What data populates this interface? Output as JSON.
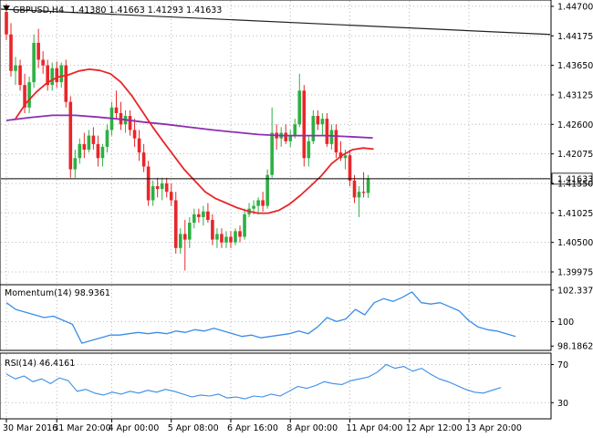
{
  "header": {
    "symbol_text": "GBPUSD,H4",
    "ohlc_text": "1.41380 1.41663 1.41293 1.41633"
  },
  "colors": {
    "bull": "#2db043",
    "bear": "#e8262a",
    "sma_fast": "#e8262a",
    "sma_slow": "#8b2fb0",
    "trendline": "#222222",
    "indicator": "#3b8de8",
    "grid_dot": "#b8b8b8",
    "frame": "#000000"
  },
  "chart_data": [
    {
      "type": "candlestick",
      "title": "GBPUSD,H4",
      "ylim": [
        1.3978,
        1.4478
      ],
      "y_ticks": [
        "1.44700",
        "1.44175",
        "1.43650",
        "1.43125",
        "1.42600",
        "1.42075",
        "1.41550",
        "1.41025",
        "1.40500",
        "1.39975"
      ],
      "y_tick_values": [
        1.447,
        1.44175,
        1.4365,
        1.43125,
        1.426,
        1.42075,
        1.4155,
        1.41025,
        1.405,
        1.39975
      ],
      "last_price_label": "1.41633",
      "last_price": 1.41633,
      "x_labels": [
        "30 Mar 2016",
        "31 Mar 20:00",
        "4 Apr 00:00",
        "5 Apr 08:00",
        "6 Apr 16:00",
        "8 Apr 00:00",
        "11 Apr 04:00",
        "12 Apr 12:00",
        "13 Apr 20:00"
      ],
      "x_label_candle_index": [
        0,
        11,
        23,
        36,
        49,
        62,
        75,
        88,
        101
      ],
      "candles": [
        [
          1.446,
          1.4475,
          1.441,
          1.442
        ],
        [
          1.442,
          1.444,
          1.4345,
          1.4355
        ],
        [
          1.4355,
          1.438,
          1.433,
          1.4365
        ],
        [
          1.4365,
          1.4375,
          1.432,
          1.433
        ],
        [
          1.433,
          1.435,
          1.428,
          1.429
        ],
        [
          1.429,
          1.4345,
          1.428,
          1.4335
        ],
        [
          1.4335,
          1.442,
          1.4325,
          1.4405
        ],
        [
          1.4405,
          1.443,
          1.436,
          1.4375
        ],
        [
          1.4375,
          1.439,
          1.435,
          1.4365
        ],
        [
          1.4365,
          1.4375,
          1.432,
          1.433
        ],
        [
          1.433,
          1.437,
          1.432,
          1.436
        ],
        [
          1.436,
          1.4372,
          1.4325,
          1.4335
        ],
        [
          1.4335,
          1.437,
          1.4325,
          1.4365
        ],
        [
          1.4365,
          1.4375,
          1.429,
          1.43
        ],
        [
          1.43,
          1.431,
          1.4165,
          1.418
        ],
        [
          1.418,
          1.4215,
          1.4165,
          1.42
        ],
        [
          1.42,
          1.4235,
          1.419,
          1.4225
        ],
        [
          1.4225,
          1.4245,
          1.42,
          1.4215
        ],
        [
          1.4215,
          1.425,
          1.421,
          1.424
        ],
        [
          1.424,
          1.4255,
          1.4215,
          1.4225
        ],
        [
          1.4225,
          1.424,
          1.4185,
          1.42
        ],
        [
          1.42,
          1.4225,
          1.4185,
          1.422
        ],
        [
          1.422,
          1.426,
          1.421,
          1.425
        ],
        [
          1.425,
          1.43,
          1.424,
          1.429
        ],
        [
          1.429,
          1.432,
          1.427,
          1.428
        ],
        [
          1.428,
          1.43,
          1.425,
          1.426
        ],
        [
          1.426,
          1.4285,
          1.4245,
          1.4275
        ],
        [
          1.4275,
          1.4285,
          1.424,
          1.425
        ],
        [
          1.425,
          1.427,
          1.422,
          1.4235
        ],
        [
          1.4235,
          1.425,
          1.4195,
          1.421
        ],
        [
          1.421,
          1.4225,
          1.4175,
          1.4185
        ],
        [
          1.4185,
          1.4195,
          1.4115,
          1.4125
        ],
        [
          1.4125,
          1.416,
          1.4115,
          1.415
        ],
        [
          1.415,
          1.4165,
          1.413,
          1.4145
        ],
        [
          1.4145,
          1.4165,
          1.4125,
          1.4155
        ],
        [
          1.4155,
          1.4165,
          1.413,
          1.414
        ],
        [
          1.414,
          1.4155,
          1.4115,
          1.4125
        ],
        [
          1.4125,
          1.414,
          1.403,
          1.404
        ],
        [
          1.404,
          1.4075,
          1.403,
          1.4065
        ],
        [
          1.4065,
          1.409,
          1.4,
          1.4055
        ],
        [
          1.4055,
          1.4095,
          1.404,
          1.4085
        ],
        [
          1.4085,
          1.411,
          1.4075,
          1.41
        ],
        [
          1.41,
          1.411,
          1.4085,
          1.4095
        ],
        [
          1.4095,
          1.4115,
          1.408,
          1.4105
        ],
        [
          1.4105,
          1.412,
          1.4085,
          1.409
        ],
        [
          1.409,
          1.41,
          1.4045,
          1.4055
        ],
        [
          1.4055,
          1.4075,
          1.404,
          1.4065
        ],
        [
          1.4065,
          1.4075,
          1.404,
          1.405
        ],
        [
          1.405,
          1.407,
          1.404,
          1.406
        ],
        [
          1.406,
          1.407,
          1.404,
          1.405
        ],
        [
          1.405,
          1.4075,
          1.4045,
          1.407
        ],
        [
          1.407,
          1.408,
          1.405,
          1.406
        ],
        [
          1.406,
          1.411,
          1.4055,
          1.41
        ],
        [
          1.41,
          1.412,
          1.4095,
          1.411
        ],
        [
          1.411,
          1.4125,
          1.41,
          1.4115
        ],
        [
          1.4115,
          1.413,
          1.41,
          1.4125
        ],
        [
          1.4125,
          1.414,
          1.4105,
          1.4115
        ],
        [
          1.4115,
          1.418,
          1.411,
          1.417
        ],
        [
          1.417,
          1.429,
          1.4165,
          1.4245
        ],
        [
          1.4245,
          1.426,
          1.4215,
          1.4235
        ],
        [
          1.4235,
          1.4255,
          1.422,
          1.4245
        ],
        [
          1.4245,
          1.426,
          1.4225,
          1.423
        ],
        [
          1.423,
          1.425,
          1.422,
          1.424
        ],
        [
          1.424,
          1.427,
          1.4235,
          1.426
        ],
        [
          1.426,
          1.435,
          1.4255,
          1.432
        ],
        [
          1.432,
          1.433,
          1.4185,
          1.42
        ],
        [
          1.42,
          1.424,
          1.4185,
          1.423
        ],
        [
          1.423,
          1.4285,
          1.4225,
          1.4275
        ],
        [
          1.4275,
          1.4285,
          1.425,
          1.426
        ],
        [
          1.426,
          1.428,
          1.424,
          1.427
        ],
        [
          1.427,
          1.428,
          1.422,
          1.4225
        ],
        [
          1.4225,
          1.426,
          1.4215,
          1.425
        ],
        [
          1.425,
          1.426,
          1.42,
          1.421
        ],
        [
          1.421,
          1.423,
          1.4195,
          1.42
        ],
        [
          1.42,
          1.4215,
          1.418,
          1.4205
        ],
        [
          1.4205,
          1.4215,
          1.415,
          1.416
        ],
        [
          1.416,
          1.417,
          1.412,
          1.413
        ],
        [
          1.413,
          1.415,
          1.4095,
          1.414
        ],
        [
          1.414,
          1.4175,
          1.413,
          1.4138
        ],
        [
          1.4138,
          1.417,
          1.4129,
          1.4163
        ]
      ],
      "sma_fast_values": [
        1.427,
        1.4298,
        1.4318,
        1.4334,
        1.4344,
        1.4348,
        1.4355,
        1.4358,
        1.4356,
        1.435,
        1.4335,
        1.4312,
        1.4284,
        1.4256,
        1.423,
        1.4205,
        1.418,
        1.416,
        1.414,
        1.4128,
        1.412,
        1.4112,
        1.4106,
        1.4102,
        1.4102,
        1.4107,
        1.4118,
        1.4133,
        1.415,
        1.4168,
        1.419,
        1.4205,
        1.4215,
        1.4218,
        1.4216
      ],
      "sma_fast_start_index": 2,
      "sma_fast_step": 2.3,
      "sma_slow_values": [
        1.4267,
        1.4272,
        1.4276,
        1.4276,
        1.4273,
        1.4269,
        1.4264,
        1.426,
        1.4255,
        1.425,
        1.4246,
        1.4242,
        1.424,
        1.424,
        1.424,
        1.4238,
        1.4236
      ],
      "sma_slow_start_index": 0,
      "sma_slow_step": 5,
      "trendline": {
        "start_price": 1.4465,
        "end_price": 1.442
      }
    },
    {
      "type": "line",
      "title": "Momentum(14) 98.9361",
      "ylim": [
        98.0,
        102.6
      ],
      "y_ticks": [
        "102.3375",
        "100",
        "98.1862"
      ],
      "y_tick_values": [
        102.3375,
        100,
        98.1862
      ],
      "values": [
        101.4,
        100.9,
        100.7,
        100.5,
        100.3,
        100.4,
        100.1,
        99.8,
        98.4,
        98.6,
        98.8,
        99.0,
        99.0,
        99.1,
        99.2,
        99.1,
        99.2,
        99.1,
        99.3,
        99.2,
        99.4,
        99.3,
        99.5,
        99.3,
        99.1,
        98.9,
        99.0,
        98.8,
        98.9,
        99.0,
        99.1,
        99.3,
        99.1,
        99.6,
        100.3,
        100.0,
        100.2,
        100.9,
        100.5,
        101.4,
        101.7,
        101.5,
        101.8,
        102.2,
        101.4,
        101.3,
        101.4,
        101.1,
        100.8,
        100.1,
        99.6,
        99.4,
        99.3,
        99.1,
        98.9
      ],
      "line_count_span": 80
    },
    {
      "type": "line",
      "title": "RSI(14) 46.4161",
      "ylim": [
        15,
        80
      ],
      "y_ticks": [
        "70",
        "30"
      ],
      "y_tick_values": [
        70,
        30
      ],
      "values": [
        60,
        55,
        58,
        52,
        55,
        50,
        56,
        53,
        42,
        44,
        40,
        38,
        41,
        39,
        42,
        40,
        43,
        41,
        44,
        42,
        39,
        36,
        38,
        37,
        39,
        35,
        36,
        34,
        37,
        36,
        39,
        37,
        42,
        47,
        45,
        48,
        52,
        50,
        49,
        53,
        55,
        57,
        62,
        70,
        66,
        68,
        63,
        66,
        60,
        55,
        52,
        48,
        44,
        41,
        40,
        43,
        46
      ],
      "line_count_span": 80
    }
  ]
}
